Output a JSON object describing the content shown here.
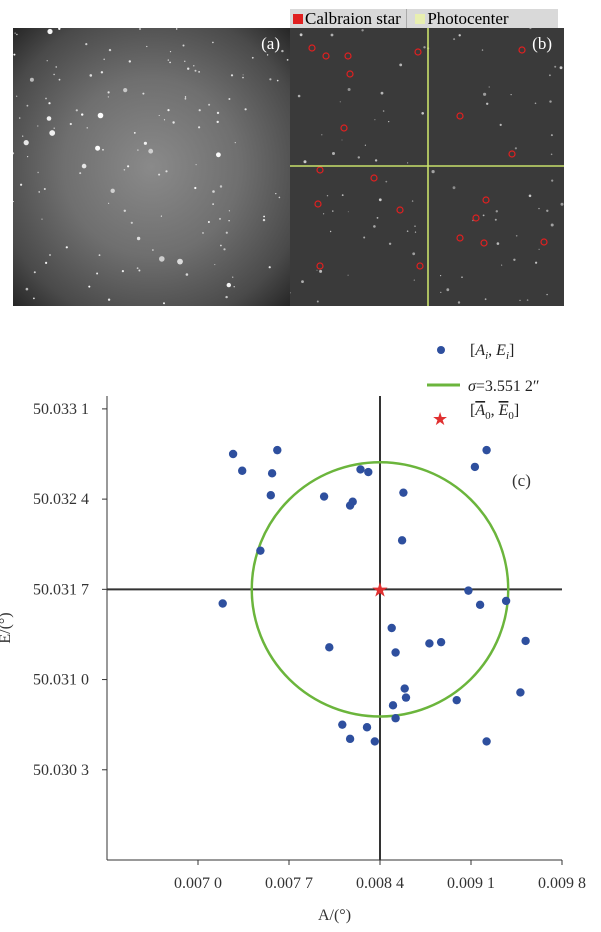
{
  "panel_a": {
    "tag": "(a)"
  },
  "panel_b": {
    "tag": "(b)",
    "legend": {
      "item1": "Calbraion star",
      "item2": "Photocenter"
    },
    "colors": {
      "calibration": "#e02020",
      "photocenter": "#c8e06a"
    }
  },
  "chart_data": {
    "type": "scatter",
    "tag": "(c)",
    "xlabel": "A/(°)",
    "ylabel": "E/(°)",
    "xlim": [
      0.0063,
      0.0098
    ],
    "ylim": [
      50.0296,
      50.0332
    ],
    "xticks": [
      0.007,
      0.0077,
      0.0084,
      0.0091,
      0.0098
    ],
    "xtick_labels": [
      "0.007 0",
      "0.007 7",
      "0.008 4",
      "0.009 1",
      "0.009 8"
    ],
    "yticks": [
      50.0303,
      50.031,
      50.0317,
      50.0324,
      50.0331
    ],
    "ytick_labels": [
      "50.030 3",
      "50.031 0",
      "50.031 7",
      "50.032 4",
      "50.033 1"
    ],
    "legend": [
      "[A_i, E_i]",
      "σ=3.551 2″",
      "[Ā_0, Ē_0]"
    ],
    "colors": {
      "points": "#2e4f9e",
      "circle": "#6bb53c",
      "center": "#e03030",
      "crosshair": "#333333"
    },
    "center": {
      "x": 0.0084,
      "y": 50.0317
    },
    "sigma_arcsec": 3.5512,
    "points": [
      {
        "x": 0.00727,
        "y": 50.03275
      },
      {
        "x": 0.00734,
        "y": 50.03262
      },
      {
        "x": 0.00761,
        "y": 50.03278
      },
      {
        "x": 0.00757,
        "y": 50.0326
      },
      {
        "x": 0.00756,
        "y": 50.03243
      },
      {
        "x": 0.00748,
        "y": 50.032
      },
      {
        "x": 0.00719,
        "y": 50.03159
      },
      {
        "x": 0.00797,
        "y": 50.03242
      },
      {
        "x": 0.00819,
        "y": 50.03238
      },
      {
        "x": 0.00817,
        "y": 50.03235
      },
      {
        "x": 0.00825,
        "y": 50.03263
      },
      {
        "x": 0.00831,
        "y": 50.03261
      },
      {
        "x": 0.00858,
        "y": 50.03245
      },
      {
        "x": 0.00857,
        "y": 50.03208
      },
      {
        "x": 0.00913,
        "y": 50.03265
      },
      {
        "x": 0.00922,
        "y": 50.03278
      },
      {
        "x": 0.00908,
        "y": 50.03169
      },
      {
        "x": 0.00917,
        "y": 50.03158
      },
      {
        "x": 0.00937,
        "y": 50.03161
      },
      {
        "x": 0.00952,
        "y": 50.0313
      },
      {
        "x": 0.00948,
        "y": 50.0309
      },
      {
        "x": 0.00922,
        "y": 50.03052
      },
      {
        "x": 0.00899,
        "y": 50.03084
      },
      {
        "x": 0.00887,
        "y": 50.03129
      },
      {
        "x": 0.00878,
        "y": 50.03128
      },
      {
        "x": 0.00852,
        "y": 50.03121
      },
      {
        "x": 0.00849,
        "y": 50.0314
      },
      {
        "x": 0.00859,
        "y": 50.03093
      },
      {
        "x": 0.0086,
        "y": 50.03086
      },
      {
        "x": 0.0085,
        "y": 50.0308
      },
      {
        "x": 0.00852,
        "y": 50.0307
      },
      {
        "x": 0.00801,
        "y": 50.03125
      },
      {
        "x": 0.00811,
        "y": 50.03065
      },
      {
        "x": 0.00817,
        "y": 50.03054
      },
      {
        "x": 0.0083,
        "y": 50.03063
      },
      {
        "x": 0.00836,
        "y": 50.03052
      }
    ]
  }
}
